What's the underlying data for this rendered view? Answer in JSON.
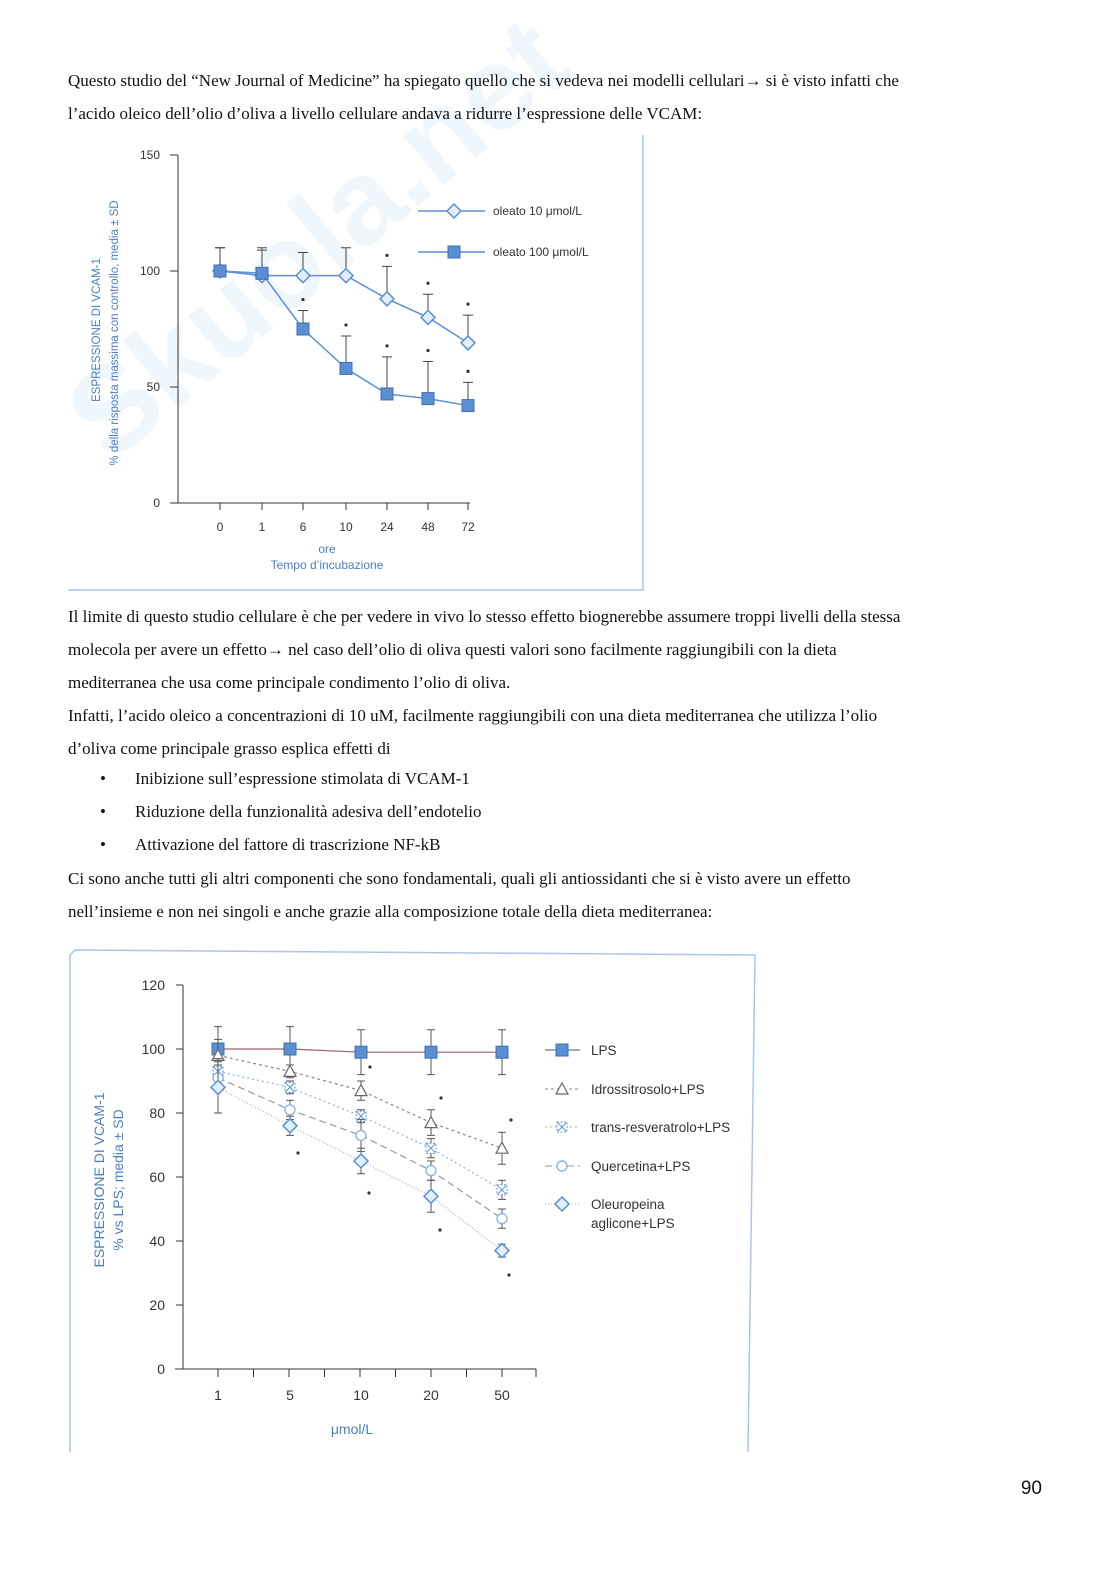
{
  "text": {
    "p1a": "Questo studio del “New Journal of Medicine” ha spiegato quello che si vedeva nei modelli cellulari→ si è visto infatti che",
    "p1b": "l’acido oleico dell’olio d’oliva a livello cellulare andava a ridurre l’espressione delle VCAM:",
    "p2a": "Il limite di questo studio cellulare è che per vedere in vivo lo stesso effetto biognerebbe assumere troppi livelli della stessa",
    "p2b": "molecola per avere un effetto→ nel caso dell’olio di oliva questi valori sono facilmente raggiungibili con la dieta",
    "p2c": "mediterranea che usa come principale condimento l’olio di oliva.",
    "p3a": "Infatti, l’acido oleico a concentrazioni di 10 uM, facilmente raggiungibili con una dieta mediterranea che utilizza l’olio",
    "p3b": "d’oliva come principale grasso esplica effetti di",
    "bullets": [
      "Inibizione sull’espressione stimolata di VCAM-1",
      "Riduzione della funzionalità adesiva dell’endotelio",
      "Attivazione del fattore di trascrizione NF-kB"
    ],
    "bullet_mark": "•",
    "p4a": "Ci sono anche tutti gli altri componenti che sono fondamentali, quali gli antiossidanti che si è visto avere un effetto",
    "p4b": "nell’insieme e non nei singoli e anche grazie alla composizione totale della dieta mediterranea:",
    "page_number": "90",
    "watermark": "Skuola.net il paradiso dello studente"
  },
  "chart_data": [
    {
      "type": "line",
      "title": "",
      "ylabel": "ESPRESSIONE DI VCAM-1",
      "ylabel2": "% della risposta massima con controllo, media ± SD",
      "xlabel": "ore",
      "xlabel2": "Tempo d’incubazione",
      "categories": [
        "0",
        "1",
        "6",
        "10",
        "24",
        "48",
        "72"
      ],
      "yticks": [
        0,
        50,
        100,
        150
      ],
      "ylim": [
        0,
        150
      ],
      "legend": "top-right",
      "series": [
        {
          "name": "oleato 10 μmol/L",
          "marker": "diamond-open",
          "values": [
            100,
            98,
            98,
            98,
            88,
            80,
            69
          ],
          "err": [
            10,
            12,
            10,
            12,
            14,
            10,
            12
          ],
          "sig": [
            false,
            false,
            false,
            false,
            true,
            true,
            true
          ]
        },
        {
          "name": "oleato 100 μmol/L",
          "marker": "square-filled",
          "values": [
            100,
            99,
            75,
            58,
            47,
            45,
            42
          ],
          "err": [
            10,
            10,
            8,
            14,
            16,
            16,
            10
          ],
          "sig": [
            false,
            false,
            true,
            true,
            true,
            true,
            true
          ]
        }
      ],
      "colors": {
        "line": "#5b8fd3",
        "fill": "#5b8fd3",
        "open": "#d6e6f7",
        "axis": "#333",
        "label": "#4a7fc4"
      }
    },
    {
      "type": "line",
      "title": "",
      "ylabel": "ESPRESSIONE DI VCAM-1",
      "ylabel2": "% vs LPS; media ± SD",
      "xlabel": "μmol/L",
      "categories": [
        "1",
        "5",
        "10",
        "20",
        "50"
      ],
      "yticks": [
        0,
        20,
        40,
        60,
        80,
        100,
        120
      ],
      "ylim": [
        0,
        120
      ],
      "legend": "right",
      "series": [
        {
          "name": "LPS",
          "marker": "square-filled",
          "values": [
            100,
            100,
            99,
            99,
            99
          ],
          "err": [
            7,
            7,
            7,
            7,
            7
          ]
        },
        {
          "name": "Idrossitrosolo+LPS",
          "marker": "triangle-open",
          "values": [
            98,
            93,
            87,
            77,
            69
          ],
          "err": [
            5,
            2,
            3,
            4,
            5
          ]
        },
        {
          "name": "trans-resveratrolo+LPS",
          "marker": "square-x",
          "values": [
            93,
            88,
            79,
            69,
            56
          ],
          "err": [
            4,
            2,
            2,
            3,
            3
          ]
        },
        {
          "name": "Quercetina+LPS",
          "marker": "circle-open",
          "values": [
            91,
            81,
            73,
            62,
            47
          ],
          "err": [
            4,
            3,
            5,
            3,
            3
          ]
        },
        {
          "name": "Oleuropeina aglicone+LPS",
          "name_lines": [
            "Oleuropeina",
            "aglicone+LPS"
          ],
          "marker": "diamond-open",
          "values": [
            88,
            76,
            65,
            54,
            37
          ],
          "err": [
            8,
            3,
            4,
            5,
            2
          ]
        }
      ],
      "colors": {
        "line": "#5b8fd3",
        "axis": "#333",
        "label": "#4a7fc4"
      }
    }
  ]
}
